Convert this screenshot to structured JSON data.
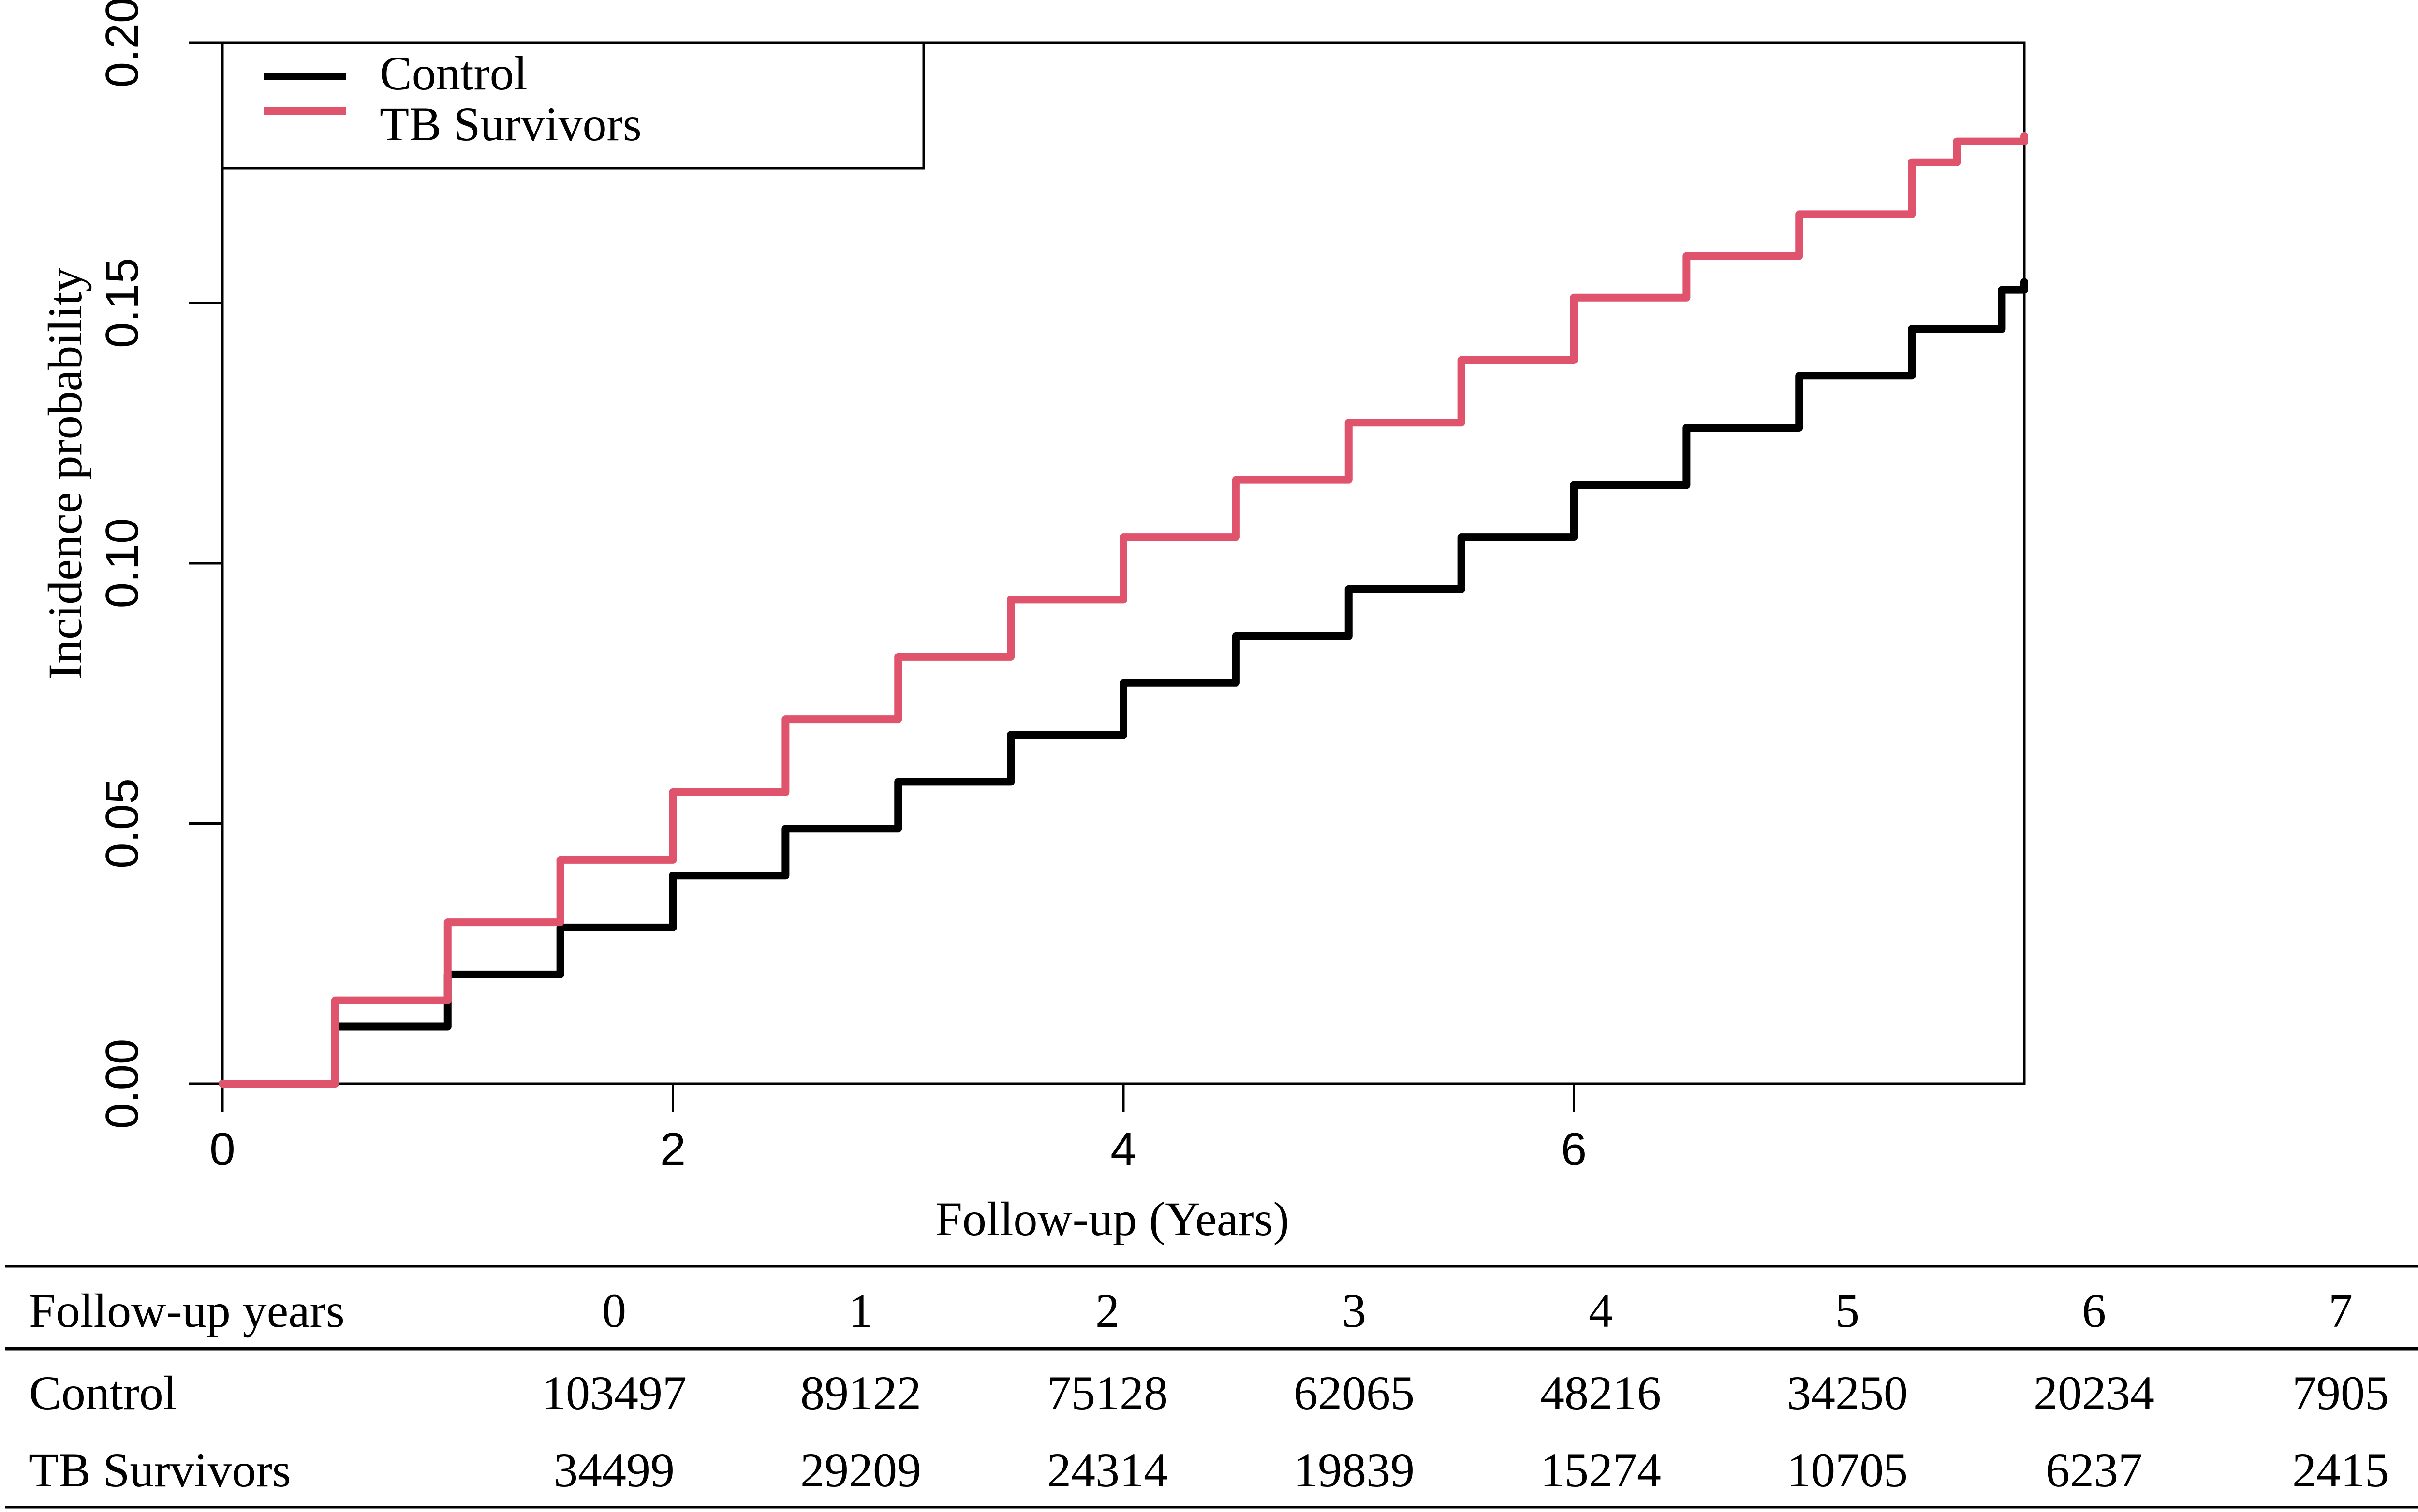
{
  "chart_data": {
    "type": "line",
    "title": "",
    "xlabel": "Follow-up (Years)",
    "ylabel": "Incidence probability",
    "xlim": [
      0,
      8
    ],
    "ylim": [
      0,
      0.2
    ],
    "x_ticks": [
      "0",
      "2",
      "4",
      "6"
    ],
    "y_ticks": [
      "0.00",
      "0.05",
      "0.10",
      "0.15",
      "0.20"
    ],
    "grid": false,
    "legend_position": "top-left",
    "series": [
      {
        "name": "Control",
        "color": "#000000",
        "x": [
          0,
          0.5,
          1,
          1.5,
          2,
          2.5,
          3,
          3.5,
          4,
          4.5,
          5,
          5.5,
          6,
          6.5,
          7,
          7.5,
          7.9,
          8.0
        ],
        "y": [
          0,
          0.011,
          0.021,
          0.03,
          0.04,
          0.049,
          0.058,
          0.067,
          0.077,
          0.086,
          0.095,
          0.105,
          0.115,
          0.126,
          0.136,
          0.145,
          0.1525,
          0.154
        ]
      },
      {
        "name": "TB Survivors",
        "color": "#e0536c",
        "x": [
          0,
          0.5,
          1,
          1.5,
          2,
          2.5,
          3,
          3.5,
          4,
          4.5,
          5,
          5.5,
          6,
          6.5,
          7,
          7.5,
          7.7,
          8.0
        ],
        "y": [
          0,
          0.016,
          0.031,
          0.043,
          0.056,
          0.07,
          0.082,
          0.093,
          0.105,
          0.116,
          0.127,
          0.139,
          0.151,
          0.159,
          0.167,
          0.177,
          0.181,
          0.182
        ]
      }
    ]
  },
  "risk_table": {
    "header_label": "Follow-up years",
    "years": [
      "0",
      "1",
      "2",
      "3",
      "4",
      "5",
      "6",
      "7"
    ],
    "rows": [
      {
        "label": "Control",
        "values": [
          "103497",
          "89122",
          "75128",
          "62065",
          "48216",
          "34250",
          "20234",
          "7905"
        ]
      },
      {
        "label": "TB Survivors",
        "values": [
          "34499",
          "29209",
          "24314",
          "19839",
          "15274",
          "10705",
          "6237",
          "2415"
        ]
      }
    ]
  }
}
